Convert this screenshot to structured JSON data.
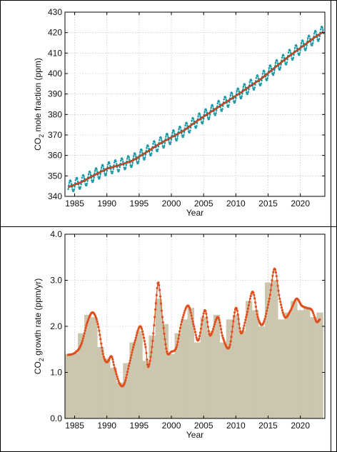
{
  "chart_data": [
    {
      "type": "line",
      "xlabel": "Year",
      "ylabel": "CO",
      "ylabel_sub": "2",
      "ylabel_tail": " mole fraction (ppm)",
      "xlim": [
        1983.5,
        2023.8
      ],
      "ylim": [
        340,
        430
      ],
      "xticks": [
        1985,
        1990,
        1995,
        2000,
        2005,
        2010,
        2015,
        2020
      ],
      "yticks": [
        340,
        350,
        360,
        370,
        380,
        390,
        400,
        410,
        420,
        430
      ],
      "grid": true,
      "colors": {
        "monthly": "#1a9aa6",
        "trend": "#e05020"
      },
      "trend_points": [
        [
          1984,
          344.5
        ],
        [
          1986,
          346.9
        ],
        [
          1988,
          350.3
        ],
        [
          1990,
          353.5
        ],
        [
          1992,
          355.3
        ],
        [
          1994,
          357.5
        ],
        [
          1996,
          361.3
        ],
        [
          1998,
          365.4
        ],
        [
          2000,
          368.8
        ],
        [
          2002,
          372.3
        ],
        [
          2004,
          376.9
        ],
        [
          2006,
          381.0
        ],
        [
          2008,
          385.1
        ],
        [
          2010,
          389.1
        ],
        [
          2012,
          393.4
        ],
        [
          2014,
          397.6
        ],
        [
          2016,
          402.8
        ],
        [
          2018,
          407.9
        ],
        [
          2020,
          412.5
        ],
        [
          2022,
          417.2
        ],
        [
          2023.5,
          420.3
        ]
      ],
      "seasonal_amplitude": 3.2
    },
    {
      "type": "bar",
      "xlabel": "Year",
      "ylabel": "CO",
      "ylabel_sub": "2",
      "ylabel_tail": " growth rate (ppm/yr)",
      "xlim": [
        1983.5,
        2023.8
      ],
      "ylim": [
        0.0,
        4.0
      ],
      "xticks": [
        1985,
        1990,
        1995,
        2000,
        2005,
        2010,
        2015,
        2020
      ],
      "yticks": [
        0.0,
        1.0,
        2.0,
        3.0,
        4.0
      ],
      "ytick_labels": [
        "0.0",
        "1.0",
        "2.0",
        "3.0",
        "4.0"
      ],
      "grid": true,
      "colors": {
        "bars": "#cbc6ad",
        "curve": "#e0501e"
      },
      "annual_bars": {
        "years": [
          1984,
          1985,
          1986,
          1987,
          1988,
          1989,
          1990,
          1991,
          1992,
          1993,
          1994,
          1995,
          1996,
          1997,
          1998,
          1999,
          2000,
          2001,
          2002,
          2003,
          2004,
          2005,
          2006,
          2007,
          2008,
          2009,
          2010,
          2011,
          2012,
          2013,
          2014,
          2015,
          2016,
          2017,
          2018,
          2019,
          2020,
          2021,
          2022,
          2023
        ],
        "values": [
          1.4,
          1.42,
          1.85,
          2.25,
          2.2,
          1.55,
          1.3,
          1.1,
          0.78,
          1.2,
          1.65,
          1.9,
          1.25,
          1.8,
          2.6,
          2.05,
          1.4,
          1.85,
          2.15,
          2.4,
          1.65,
          2.2,
          1.9,
          2.25,
          1.65,
          2.15,
          2.25,
          1.9,
          2.55,
          2.35,
          2.0,
          2.95,
          3.0,
          2.15,
          2.3,
          2.55,
          2.35,
          2.4,
          2.2,
          2.3
        ]
      },
      "smoothed_curve": [
        [
          1984.0,
          1.38
        ],
        [
          1985.0,
          1.42
        ],
        [
          1986.0,
          1.6
        ],
        [
          1987.0,
          2.1
        ],
        [
          1987.8,
          2.3
        ],
        [
          1988.6,
          2.05
        ],
        [
          1989.4,
          1.4
        ],
        [
          1990.0,
          1.22
        ],
        [
          1990.7,
          1.35
        ],
        [
          1991.2,
          1.1
        ],
        [
          1992.0,
          0.75
        ],
        [
          1992.7,
          0.75
        ],
        [
          1993.5,
          1.2
        ],
        [
          1994.3,
          1.65
        ],
        [
          1995.2,
          2.0
        ],
        [
          1996.0,
          1.55
        ],
        [
          1996.4,
          1.12
        ],
        [
          1997.0,
          1.55
        ],
        [
          1997.6,
          2.5
        ],
        [
          1998.0,
          2.95
        ],
        [
          1998.6,
          2.2
        ],
        [
          1999.3,
          1.45
        ],
        [
          2000.0,
          1.45
        ],
        [
          2000.8,
          1.55
        ],
        [
          2001.6,
          2.1
        ],
        [
          2002.6,
          2.45
        ],
        [
          2003.5,
          2.0
        ],
        [
          2004.2,
          1.7
        ],
        [
          2005.2,
          2.35
        ],
        [
          2006.0,
          1.8
        ],
        [
          2007.2,
          2.2
        ],
        [
          2008.0,
          1.75
        ],
        [
          2009.0,
          1.55
        ],
        [
          2010.0,
          2.4
        ],
        [
          2010.8,
          1.85
        ],
        [
          2011.6,
          2.2
        ],
        [
          2012.6,
          2.75
        ],
        [
          2013.4,
          2.2
        ],
        [
          2014.2,
          2.05
        ],
        [
          2015.2,
          2.6
        ],
        [
          2016.0,
          3.25
        ],
        [
          2016.8,
          2.6
        ],
        [
          2017.6,
          2.2
        ],
        [
          2018.5,
          2.35
        ],
        [
          2019.4,
          2.6
        ],
        [
          2020.2,
          2.45
        ],
        [
          2021.0,
          2.4
        ],
        [
          2021.8,
          2.35
        ],
        [
          2022.5,
          2.1
        ],
        [
          2023.0,
          2.15
        ]
      ]
    }
  ]
}
